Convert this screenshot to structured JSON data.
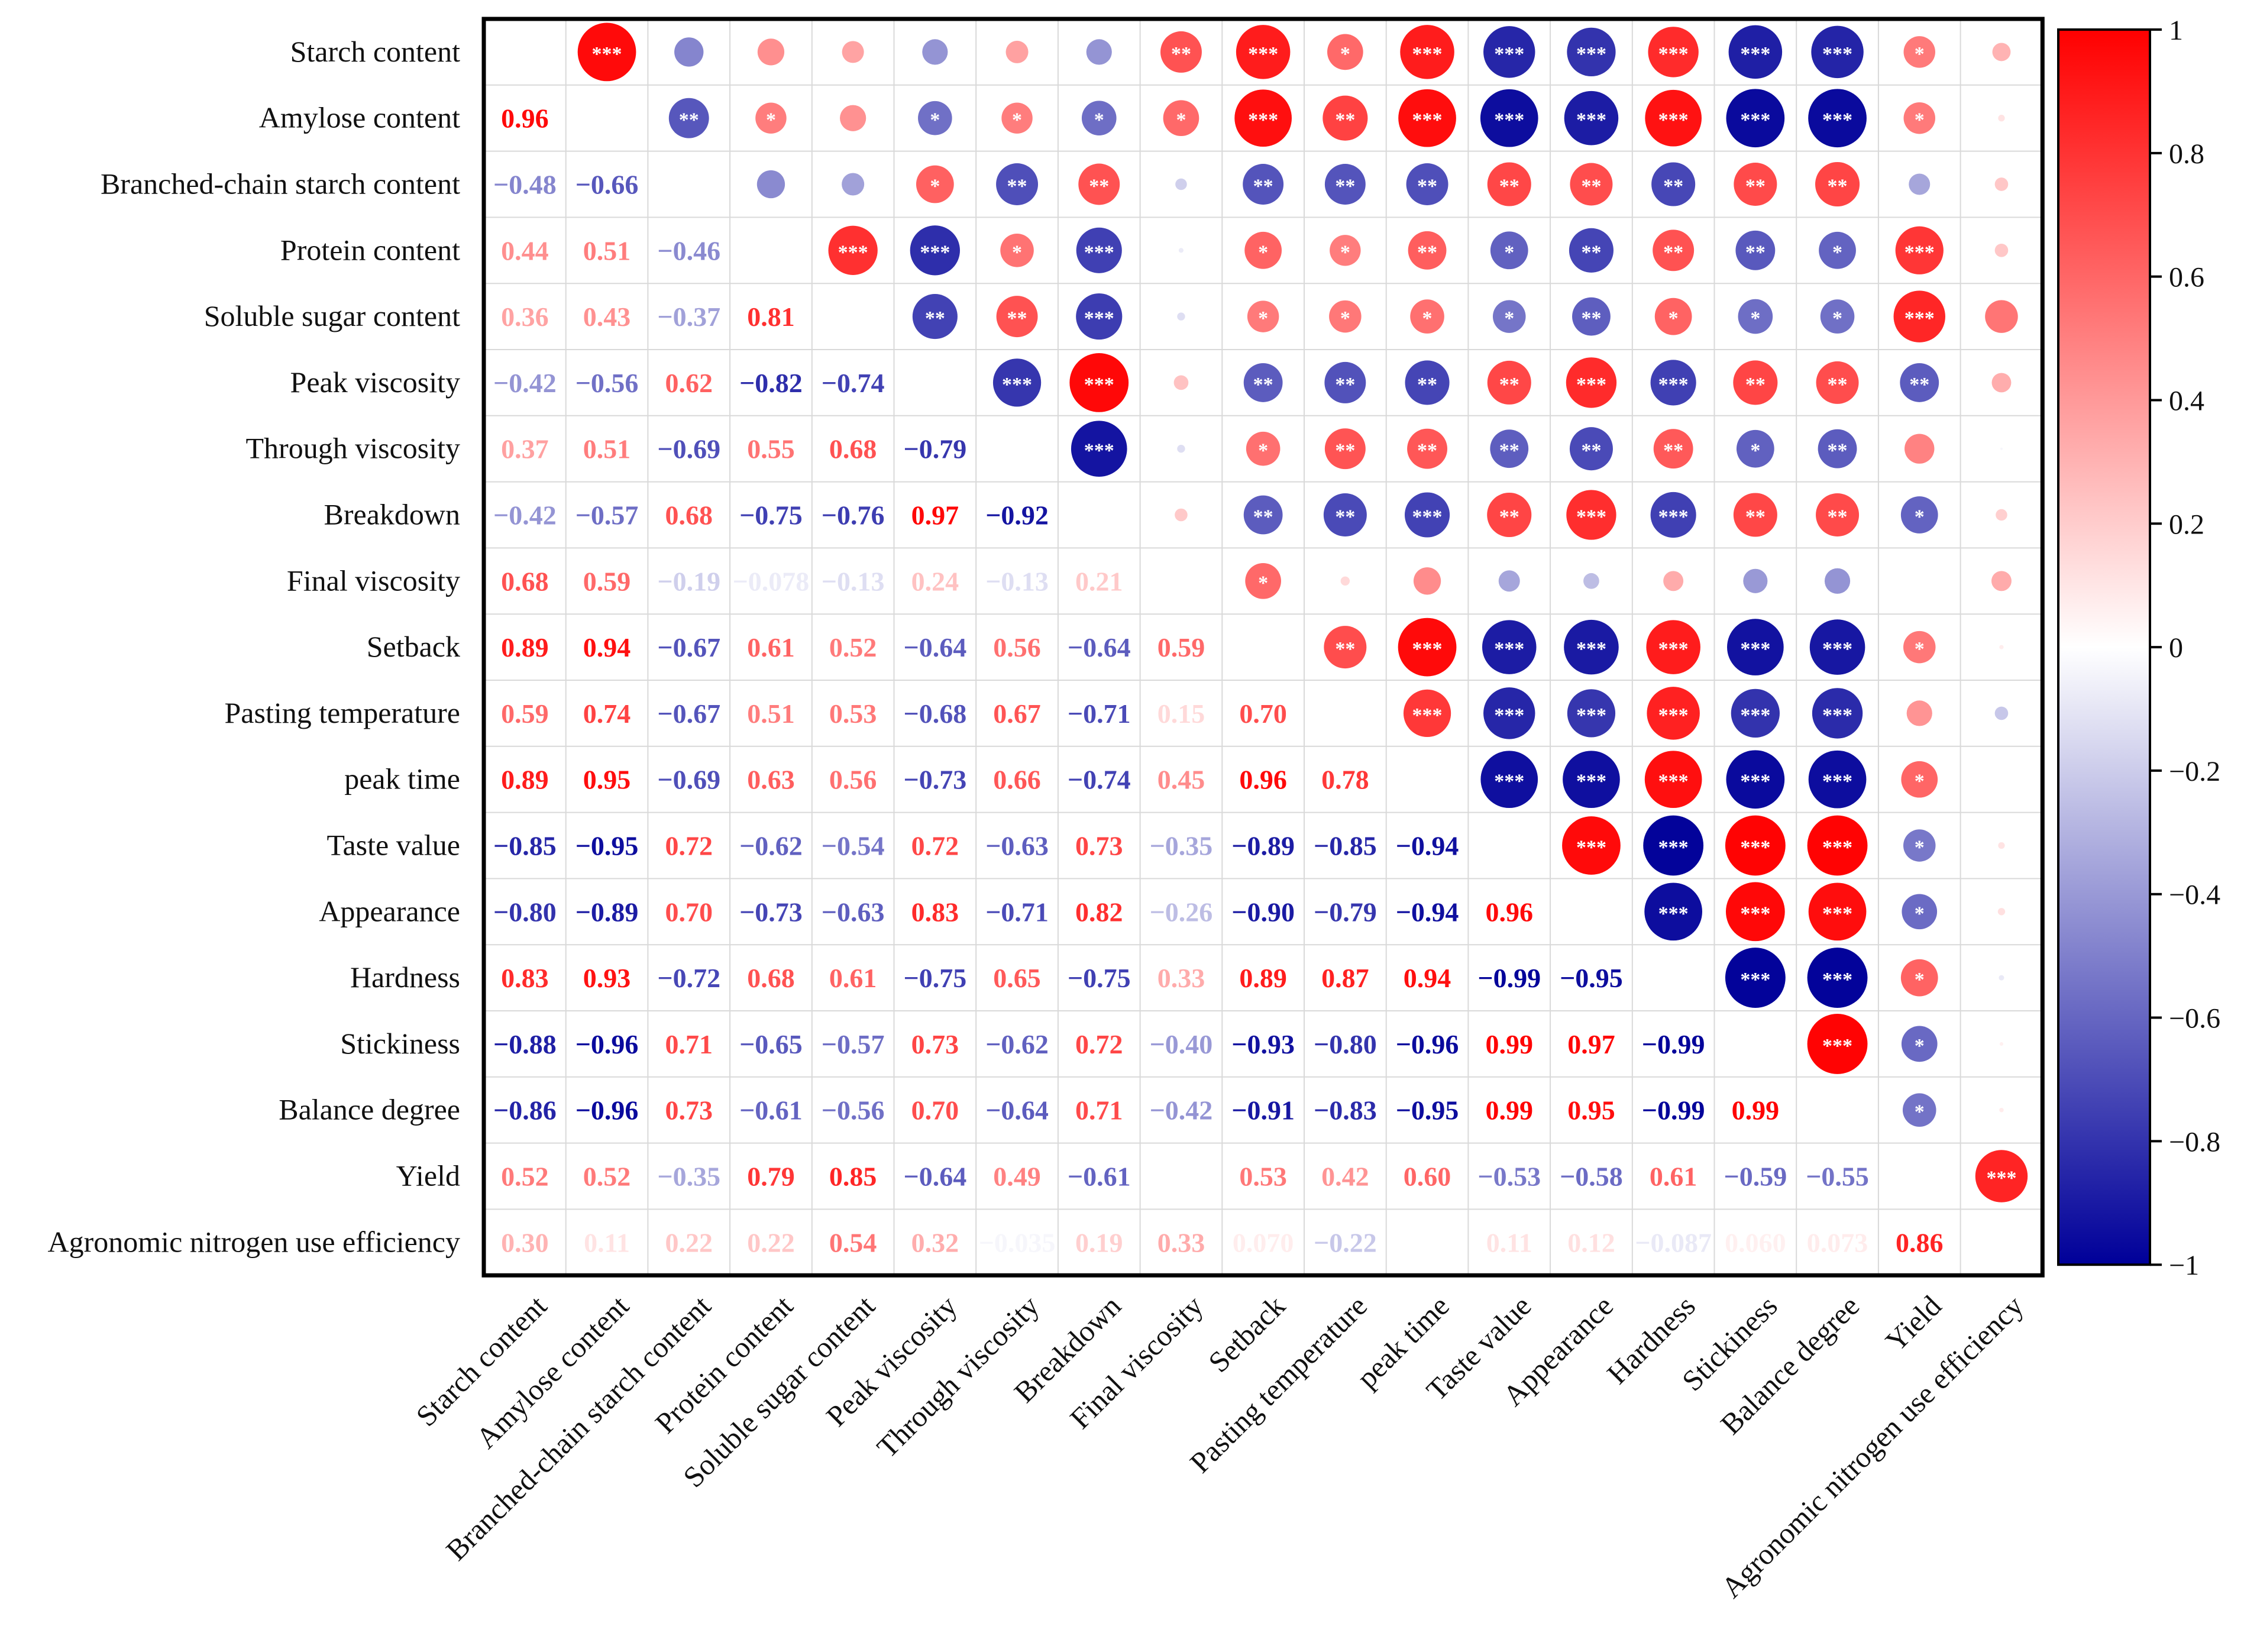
{
  "chart_data": {
    "type": "heatmap",
    "title": "",
    "variables": [
      "Starch content",
      "Amylose content",
      "Branched-chain starch content",
      "Protein content",
      "Soluble sugar content",
      "Peak viscosity",
      "Through viscosity",
      "Breakdown",
      "Final viscosity",
      "Setback",
      "Pasting temperature",
      "peak time",
      "Taste value",
      "Appearance",
      "Hardness",
      "Stickiness",
      "Balance degree",
      "Yield",
      "Agronomic nitrogen use efficiency"
    ],
    "lower_triangle_labels": [
      [],
      [
        "0.96"
      ],
      [
        "−0.48",
        "−0.66"
      ],
      [
        "0.44",
        "0.51",
        "−0.46"
      ],
      [
        "0.36",
        "0.43",
        "−0.37",
        "0.81"
      ],
      [
        "−0.42",
        "−0.56",
        "0.62",
        "−0.82",
        "−0.74"
      ],
      [
        "0.37",
        "0.51",
        "−0.69",
        "0.55",
        "0.68",
        "−0.79"
      ],
      [
        "−0.42",
        "−0.57",
        "0.68",
        "−0.75",
        "−0.76",
        "0.97",
        "−0.92"
      ],
      [
        "0.68",
        "0.59",
        "−0.19",
        "−0.078",
        "−0.13",
        "0.24",
        "−0.13",
        "0.21"
      ],
      [
        "0.89",
        "0.94",
        "−0.67",
        "0.61",
        "0.52",
        "−0.64",
        "0.56",
        "−0.64",
        "0.59"
      ],
      [
        "0.59",
        "0.74",
        "−0.67",
        "0.51",
        "0.53",
        "−0.68",
        "0.67",
        "−0.71",
        "0.15",
        "0.70"
      ],
      [
        "0.89",
        "0.95",
        "−0.69",
        "0.63",
        "0.56",
        "−0.73",
        "0.66",
        "−0.74",
        "0.45",
        "0.96",
        "0.78"
      ],
      [
        "−0.85",
        "−0.95",
        "0.72",
        "−0.62",
        "−0.54",
        "0.72",
        "−0.63",
        "0.73",
        "−0.35",
        "−0.89",
        "−0.85",
        "−0.94"
      ],
      [
        "−0.80",
        "−0.89",
        "0.70",
        "−0.73",
        "−0.63",
        "0.83",
        "−0.71",
        "0.82",
        "−0.26",
        "−0.90",
        "−0.79",
        "−0.94",
        "0.96"
      ],
      [
        "0.83",
        "0.93",
        "−0.72",
        "0.68",
        "0.61",
        "−0.75",
        "0.65",
        "−0.75",
        "0.33",
        "0.89",
        "0.87",
        "0.94",
        "−0.99",
        "−0.95"
      ],
      [
        "−0.88",
        "−0.96",
        "0.71",
        "−0.65",
        "−0.57",
        "0.73",
        "−0.62",
        "0.72",
        "−0.40",
        "−0.93",
        "−0.80",
        "−0.96",
        "0.99",
        "0.97",
        "−0.99"
      ],
      [
        "−0.86",
        "−0.96",
        "0.73",
        "−0.61",
        "−0.56",
        "0.70",
        "−0.64",
        "0.71",
        "−0.42",
        "−0.91",
        "−0.83",
        "−0.95",
        "0.99",
        "0.95",
        "−0.99",
        "0.99"
      ],
      [
        "0.52",
        "0.52",
        "−0.35",
        "0.79",
        "0.85",
        "−0.64",
        "0.49",
        "−0.61",
        "",
        "0.53",
        "0.42",
        "0.60",
        "−0.53",
        "−0.58",
        "0.61",
        "−0.59",
        "−0.55"
      ],
      [
        "0.30",
        "0.11",
        "0.22",
        "0.22",
        "0.54",
        "0.32",
        "−0.035",
        "0.19",
        "0.33",
        "0.070",
        "−0.22",
        "",
        "0.11",
        "0.12",
        "−0.087",
        "0.060",
        "0.073",
        "0.86"
      ]
    ],
    "significance": {
      "0-1": "***",
      "0-9": "***",
      "0-8": "**",
      "0-10": "*",
      "0-11": "***",
      "0-12": "***",
      "0-13": "***",
      "0-14": "***",
      "0-15": "***",
      "0-16": "***",
      "0-17": "*",
      "1-2": "**",
      "1-3": "*",
      "1-5": "*",
      "1-6": "*",
      "1-7": "*",
      "1-8": "*",
      "1-9": "***",
      "1-10": "**",
      "1-11": "***",
      "1-12": "***",
      "1-13": "***",
      "1-14": "***",
      "1-15": "***",
      "1-16": "***",
      "1-17": "*",
      "2-5": "*",
      "2-6": "**",
      "2-7": "**",
      "2-9": "**",
      "2-10": "**",
      "2-11": "**",
      "2-12": "**",
      "2-13": "**",
      "2-14": "**",
      "2-15": "**",
      "2-16": "**",
      "3-4": "***",
      "3-5": "***",
      "3-6": "*",
      "3-7": "***",
      "3-9": "*",
      "3-10": "*",
      "3-11": "**",
      "3-12": "*",
      "3-13": "**",
      "3-14": "**",
      "3-15": "**",
      "3-16": "*",
      "3-17": "***",
      "4-5": "**",
      "4-6": "**",
      "4-7": "***",
      "4-9": "*",
      "4-10": "*",
      "4-11": "*",
      "4-12": "*",
      "4-13": "**",
      "4-14": "*",
      "4-15": "*",
      "4-16": "*",
      "4-17": "***",
      "5-6": "***",
      "5-7": "***",
      "5-9": "**",
      "5-10": "**",
      "5-11": "**",
      "5-12": "**",
      "5-13": "***",
      "5-14": "***",
      "5-15": "**",
      "5-16": "**",
      "5-17": "**",
      "6-7": "***",
      "6-9": "*",
      "6-10": "**",
      "6-11": "**",
      "6-12": "**",
      "6-13": "**",
      "6-14": "**",
      "6-15": "*",
      "6-16": "**",
      "7-9": "**",
      "7-10": "**",
      "7-11": "***",
      "7-12": "**",
      "7-13": "***",
      "7-14": "***",
      "7-15": "**",
      "7-16": "**",
      "7-17": "*",
      "8-9": "*",
      "9-10": "**",
      "9-11": "***",
      "9-12": "***",
      "9-13": "***",
      "9-14": "***",
      "9-15": "***",
      "9-16": "***",
      "9-17": "*",
      "10-11": "***",
      "10-12": "***",
      "10-13": "***",
      "10-14": "***",
      "10-15": "***",
      "10-16": "***",
      "11-12": "***",
      "11-13": "***",
      "11-14": "***",
      "11-15": "***",
      "11-16": "***",
      "11-17": "*",
      "12-13": "***",
      "12-14": "***",
      "12-15": "***",
      "12-16": "***",
      "12-17": "*",
      "13-14": "***",
      "13-15": "***",
      "13-16": "***",
      "13-17": "*",
      "14-15": "***",
      "14-16": "***",
      "14-17": "*",
      "15-16": "***",
      "15-17": "*",
      "16-17": "*",
      "17-18": "***"
    },
    "upper_unlabeled_values": {
      "1-18": 0.11,
      "6-18": -0.035,
      "11-18": 0.0
    },
    "colorbar": {
      "min": -1,
      "max": 1,
      "ticks": [
        "1",
        "0.8",
        "0.6",
        "0.4",
        "0.2",
        "0",
        "−0.2",
        "−0.4",
        "−0.6",
        "−0.8",
        "−1"
      ],
      "low_color": "#000099",
      "mid_color": "#ffffff",
      "high_color": "#ff0000"
    },
    "lower_triangle": "numbers",
    "upper_triangle": "circles sized by |r| with significance stars",
    "significance_legend": [
      "*",
      "**",
      "***"
    ]
  }
}
